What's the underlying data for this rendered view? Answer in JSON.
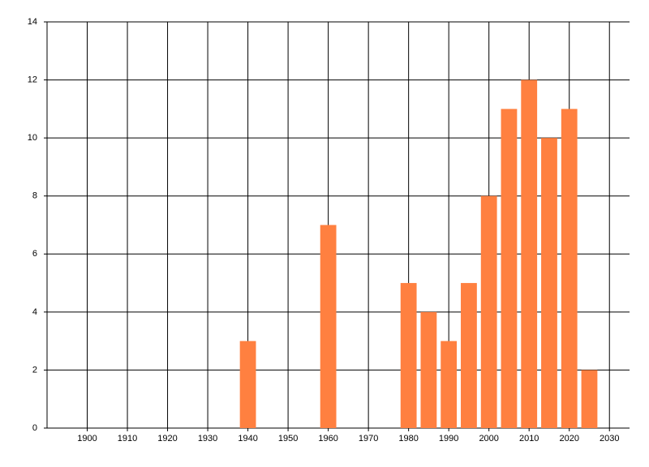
{
  "chart_data": {
    "type": "bar",
    "x": [
      1940,
      1960,
      1980,
      1985,
      1990,
      1995,
      2000,
      2005,
      2010,
      2015,
      2020,
      2025
    ],
    "values": [
      3,
      7,
      5,
      4,
      3,
      5,
      8,
      11,
      12,
      10,
      11,
      2
    ],
    "color": "#ff8040",
    "xlim": [
      1890,
      2035
    ],
    "xticks": [
      1900,
      1910,
      1920,
      1930,
      1940,
      1950,
      1960,
      1970,
      1980,
      1990,
      2000,
      2010,
      2020,
      2030
    ],
    "ylim": [
      0,
      14
    ],
    "yticks": [
      0,
      2,
      4,
      6,
      8,
      10,
      12,
      14
    ],
    "grid": true
  }
}
